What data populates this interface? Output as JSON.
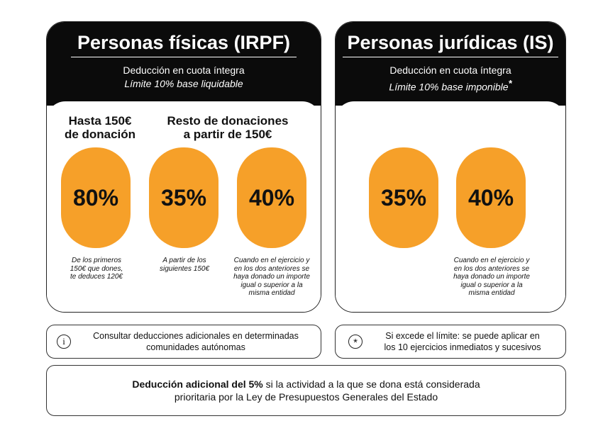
{
  "left_card": {
    "title": "Personas físicas (IRPF)",
    "subtitle": "Deducción en cuota íntegra",
    "limit": "Límite 10% base liquidable",
    "group_1_heading": [
      "Hasta 150€",
      "de donación"
    ],
    "group_2_heading": [
      "Resto de donaciones",
      "a partir de 150€"
    ],
    "items": [
      {
        "percent": "80%",
        "note": [
          "De los primeros",
          "150€ que dones,",
          "te deduces 120€"
        ]
      },
      {
        "percent": "35%",
        "note": [
          "A partir de los",
          "siguientes 150€"
        ]
      },
      {
        "percent": "40%",
        "note": [
          "Cuando en el ejercicio y",
          "en los dos anteriores se",
          "haya donado un importe",
          "igual o superior a la",
          "misma entidad"
        ]
      }
    ]
  },
  "right_card": {
    "title": "Personas jurídicas (IS)",
    "subtitle": "Deducción en cuota íntegra",
    "limit": "Límite 10% base imponible",
    "limit_mark": "*",
    "items": [
      {
        "percent": "35%"
      },
      {
        "percent": "40%",
        "note": [
          "Cuando en el ejercicio y",
          "en los dos anteriores se",
          "haya donado un importe",
          "igual o superior a la",
          "misma entidad"
        ]
      }
    ]
  },
  "info_box": {
    "icon": "i",
    "lines": [
      "Consultar deducciones adicionales en determinadas",
      "comunidades autónomas"
    ]
  },
  "limit_box": {
    "icon": "*",
    "lines": [
      "Si excede el límite: se puede aplicar en",
      "los 10 ejercicios inmediatos y sucesivos"
    ]
  },
  "footer_box": {
    "bold": "Deducción adicional del 5%",
    "line_1_rest": " si la actividad a la que se dona está considerada",
    "line_2": "prioritaria por la Ley de Presupuestos Generales del Estado"
  }
}
